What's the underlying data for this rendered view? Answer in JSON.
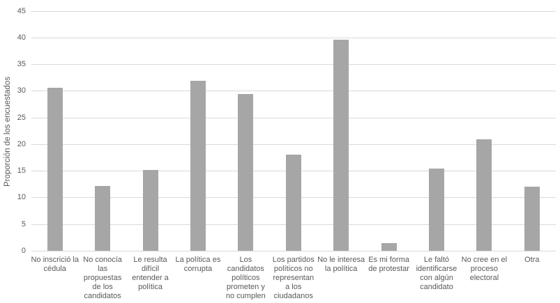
{
  "chart_data": {
    "type": "bar",
    "title": "",
    "xlabel": "",
    "ylabel": "Proporción de los encuestados",
    "ylim": [
      0,
      45
    ],
    "yticks": [
      0,
      5,
      10,
      15,
      20,
      25,
      30,
      35,
      40,
      45
    ],
    "grid": "horizontal",
    "legend": "none",
    "categories": [
      "No inscrició la cédula",
      "No conocía las propuestas de los candidatos",
      "Le resulta difícil entender a política",
      "La política es corrupta",
      "Los candidatos políticos prometen y no cumplen",
      "Los partidos políticos no representan a los ciudadanos",
      "No le interesa la política",
      "Es mi forma de protestar",
      "Le faltó identificarse con algún candidato",
      "No cree en el proceso electoral",
      "Otra"
    ],
    "category_display_lines": [
      [
        "No inscrició la",
        "cédula"
      ],
      [
        "No conocía",
        "las",
        "propuestas",
        "de los",
        "candidatos"
      ],
      [
        "Le resulta",
        "difícil",
        "entender a",
        "política"
      ],
      [
        "La política es",
        "corrupta"
      ],
      [
        "Los",
        "candidatos",
        "políticos",
        "prometen y",
        "no cumplen"
      ],
      [
        "Los partidos",
        "políticos no",
        "representan",
        "a los",
        "ciudadanos"
      ],
      [
        "No le interesa",
        "la política"
      ],
      [
        "Es mi forma",
        "de protestar"
      ],
      [
        "Le faltó",
        "identificarse",
        "con algún",
        "candidato"
      ],
      [
        "No cree en el",
        "proceso",
        "electoral"
      ],
      [
        "Otra"
      ]
    ],
    "values": [
      30.6,
      12.2,
      15.2,
      32.0,
      29.4,
      18.1,
      39.6,
      1.5,
      15.5,
      21.0,
      12.1
    ]
  },
  "colors": {
    "bar": "#A6A6A6",
    "gridline": "#D9D9D9",
    "axis_text": "#595959",
    "background": "#FFFFFF"
  }
}
